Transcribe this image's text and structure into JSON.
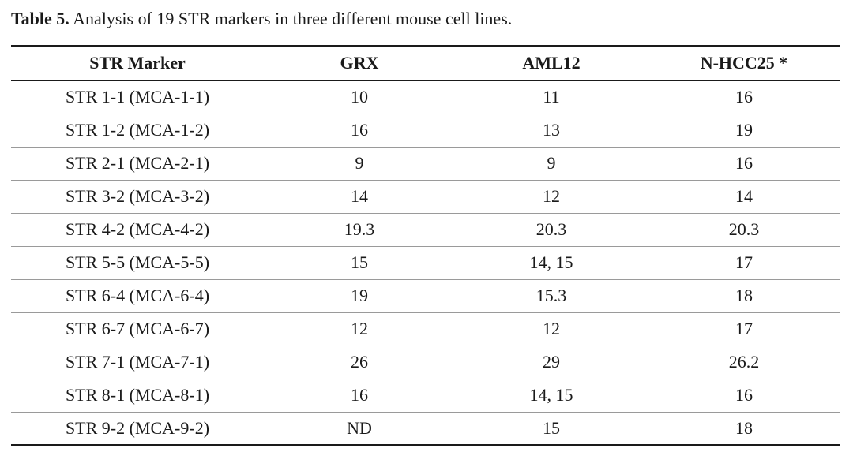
{
  "caption": {
    "label": "Table 5.",
    "text": " Analysis of 19 STR markers in three different mouse cell lines."
  },
  "table": {
    "headers": [
      "STR Marker",
      "GRX",
      "AML12",
      "N-HCC25 *"
    ],
    "rows": [
      [
        "STR 1-1 (MCA-1-1)",
        "10",
        "11",
        "16"
      ],
      [
        "STR 1-2 (MCA-1-2)",
        "16",
        "13",
        "19"
      ],
      [
        "STR 2-1 (MCA-2-1)",
        "9",
        "9",
        "16"
      ],
      [
        "STR 3-2 (MCA-3-2)",
        "14",
        "12",
        "14"
      ],
      [
        "STR 4-2 (MCA-4-2)",
        "19.3",
        "20.3",
        "20.3"
      ],
      [
        "STR 5-5 (MCA-5-5)",
        "15",
        "14, 15",
        "17"
      ],
      [
        "STR 6-4 (MCA-6-4)",
        "19",
        "15.3",
        "18"
      ],
      [
        "STR 6-7 (MCA-6-7)",
        "12",
        "12",
        "17"
      ],
      [
        "STR 7-1 (MCA-7-1)",
        "26",
        "29",
        "26.2"
      ],
      [
        "STR 8-1 (MCA-8-1)",
        "16",
        "14, 15",
        "16"
      ],
      [
        "STR 9-2 (MCA-9-2)",
        "ND",
        "15",
        "18"
      ]
    ]
  }
}
